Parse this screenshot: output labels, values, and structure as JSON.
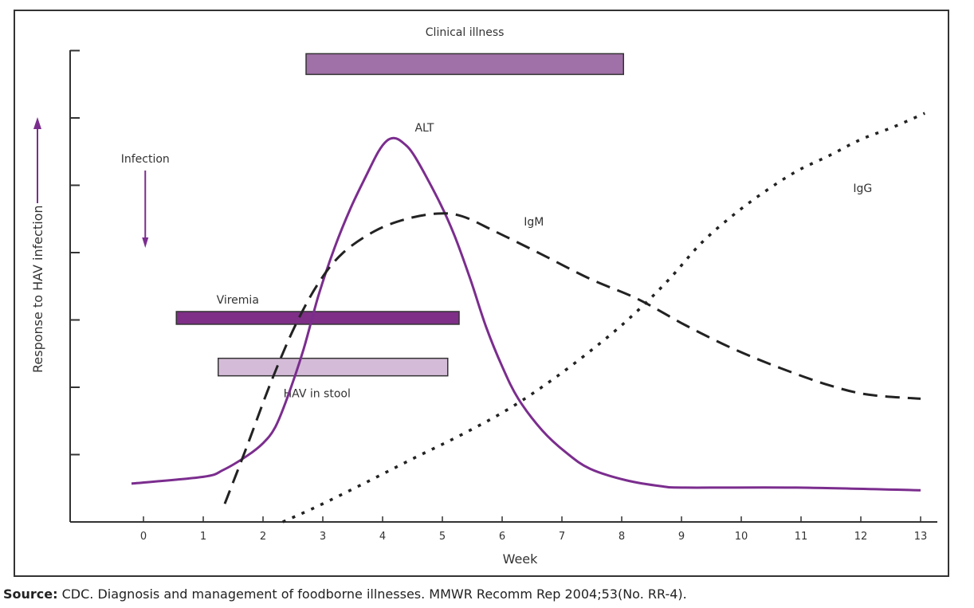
{
  "chart_data": {
    "type": "line",
    "xlabel": "Week",
    "ylabel": "Response to HAV infection",
    "xlim": [
      -1.25,
      13.3
    ],
    "ylim": [
      0,
      7
    ],
    "x_ticks": [
      0,
      1,
      2,
      3,
      4,
      5,
      6,
      7,
      8,
      9,
      10,
      11,
      12,
      13
    ],
    "y_tick_count": 7,
    "grid": false,
    "colors": {
      "alt": "#7b2d8e",
      "antibody": "#222222",
      "clinical": "#a070a8",
      "viremia": "#7f2f87",
      "stool": "#d4bcd8",
      "arrow": "#7b2d8e"
    },
    "series": [
      {
        "name": "ALT",
        "style": "solid",
        "label_at": [
          4.7,
          5.8
        ],
        "points": [
          [
            -0.2,
            0.57
          ],
          [
            1.0,
            0.67
          ],
          [
            1.33,
            0.77
          ],
          [
            1.73,
            0.98
          ],
          [
            2.0,
            1.17
          ],
          [
            2.2,
            1.4
          ],
          [
            2.4,
            1.83
          ],
          [
            2.67,
            2.54
          ],
          [
            2.93,
            3.37
          ],
          [
            3.2,
            4.08
          ],
          [
            3.47,
            4.67
          ],
          [
            3.73,
            5.15
          ],
          [
            3.93,
            5.5
          ],
          [
            4.07,
            5.66
          ],
          [
            4.2,
            5.7
          ],
          [
            4.33,
            5.64
          ],
          [
            4.53,
            5.44
          ],
          [
            4.93,
            4.79
          ],
          [
            5.2,
            4.26
          ],
          [
            5.47,
            3.6
          ],
          [
            5.73,
            2.9
          ],
          [
            6.0,
            2.31
          ],
          [
            6.27,
            1.83
          ],
          [
            6.67,
            1.36
          ],
          [
            7.07,
            1.03
          ],
          [
            7.47,
            0.79
          ],
          [
            8.07,
            0.62
          ],
          [
            8.67,
            0.53
          ],
          [
            9.07,
            0.51
          ],
          [
            10.93,
            0.51
          ],
          [
            13.0,
            0.47
          ]
        ]
      },
      {
        "name": "IgM",
        "style": "dashed",
        "label_at": [
          6.53,
          4.4
        ],
        "points": [
          [
            1.36,
            0.27
          ],
          [
            1.73,
            1.12
          ],
          [
            2.13,
            2.07
          ],
          [
            2.53,
            2.9
          ],
          [
            2.93,
            3.55
          ],
          [
            3.33,
            3.99
          ],
          [
            3.87,
            4.32
          ],
          [
            4.4,
            4.5
          ],
          [
            4.93,
            4.58
          ],
          [
            5.33,
            4.54
          ],
          [
            5.87,
            4.32
          ],
          [
            6.67,
            3.97
          ],
          [
            7.47,
            3.61
          ],
          [
            8.27,
            3.31
          ],
          [
            9.07,
            2.92
          ],
          [
            9.87,
            2.57
          ],
          [
            10.67,
            2.28
          ],
          [
            11.47,
            2.03
          ],
          [
            12.13,
            1.89
          ],
          [
            13.0,
            1.83
          ]
        ]
      },
      {
        "name": "IgG",
        "style": "dotted",
        "label_at": [
          12.03,
          4.9
        ],
        "points": [
          [
            2.33,
            0
          ],
          [
            2.93,
            0.24
          ],
          [
            3.73,
            0.59
          ],
          [
            4.53,
            0.95
          ],
          [
            5.33,
            1.3
          ],
          [
            6.13,
            1.69
          ],
          [
            6.93,
            2.17
          ],
          [
            7.73,
            2.72
          ],
          [
            8.27,
            3.14
          ],
          [
            8.8,
            3.61
          ],
          [
            9.33,
            4.14
          ],
          [
            9.87,
            4.56
          ],
          [
            10.4,
            4.91
          ],
          [
            10.93,
            5.21
          ],
          [
            11.47,
            5.44
          ],
          [
            12.0,
            5.68
          ],
          [
            12.53,
            5.86
          ],
          [
            13.07,
            6.07
          ]
        ]
      }
    ],
    "periods": [
      {
        "name": "Clinical illness",
        "start": 2.72,
        "end": 8.03,
        "level": 6.8,
        "color_key": "clinical",
        "label_pos": "above"
      },
      {
        "name": "Viremia",
        "start": 0.55,
        "end": 5.28,
        "level": 3.03,
        "color_key": "viremia",
        "label_pos": "above"
      },
      {
        "name": "HAV in stool",
        "start": 1.25,
        "end": 5.09,
        "level": 2.3,
        "color_key": "stool",
        "label_pos": "below"
      }
    ],
    "annotations": [
      {
        "text": "Infection",
        "x": 0.03,
        "arrow": "down"
      }
    ]
  },
  "source": {
    "label": "Source:",
    "text": " CDC. Diagnosis and management of foodborne illnesses. MMWR Recomm Rep 2004;53(No. RR-4)."
  }
}
